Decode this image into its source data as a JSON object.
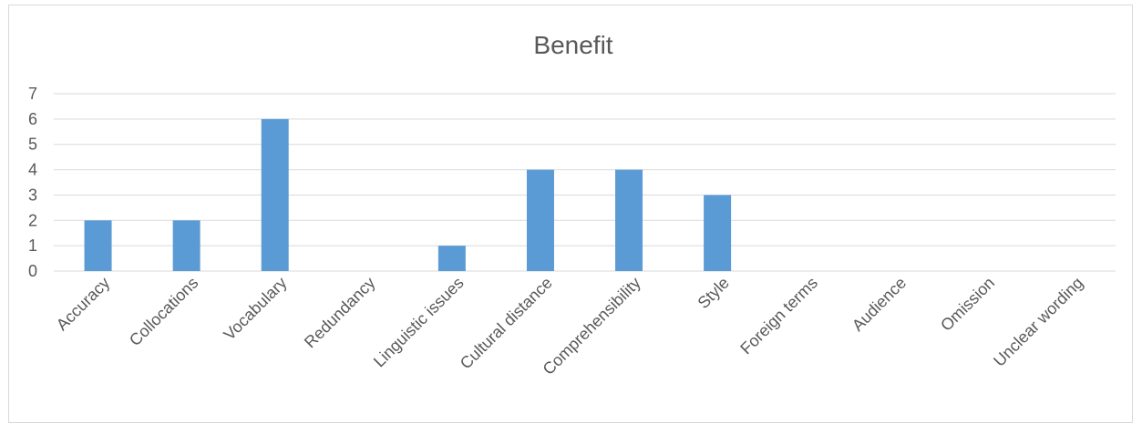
{
  "chart_data": {
    "type": "bar",
    "title": "Benefit",
    "xlabel": "",
    "ylabel": "",
    "categories": [
      "Accuracy",
      "Collocations",
      "Vocabulary",
      "Redundancy",
      "Linguistic issues",
      "Cultural distance",
      "Comprehensibility",
      "Style",
      "Foreign terms",
      "Audience",
      "Omission",
      "Unclear wording"
    ],
    "values": [
      2,
      2,
      6,
      0,
      1,
      4,
      4,
      3,
      0,
      0,
      0,
      0
    ],
    "ylim": [
      0,
      7
    ],
    "yticks": [
      0,
      1,
      2,
      3,
      4,
      5,
      6,
      7
    ],
    "grid": true,
    "legend": "none",
    "bar_color": "#5b9bd5",
    "grid_color": "#d9d9d9",
    "text_color": "#595959"
  }
}
